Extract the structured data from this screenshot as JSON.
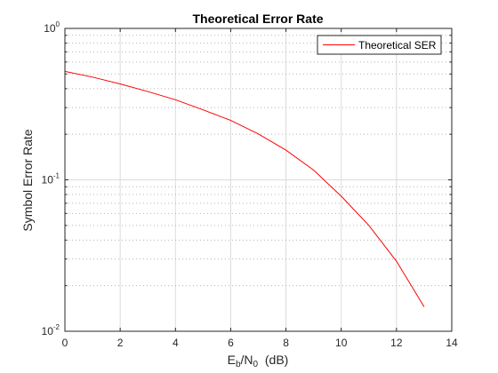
{
  "chart_data": {
    "type": "line",
    "title": "Theoretical Error Rate",
    "xlabel": "E_b/N_0 (dB)",
    "xlabel_main_1": "E",
    "xlabel_sub_1": "b",
    "xlabel_main_2": "/N",
    "xlabel_sub_2": "0",
    "xlabel_unit": "  (dB)",
    "ylabel": "Symbol Error Rate",
    "xlim": [
      0,
      14
    ],
    "ylim": [
      0.01,
      1
    ],
    "yscale": "log",
    "grid": true,
    "minor_grid": true,
    "legend_position": "top-right",
    "x_ticks": [
      0,
      2,
      4,
      6,
      8,
      10,
      12,
      14
    ],
    "x_tick_labels": [
      "0",
      "2",
      "4",
      "6",
      "8",
      "10",
      "12",
      "14"
    ],
    "y_ticks": [
      {
        "value": 1,
        "base": "10",
        "exp": "0"
      },
      {
        "value": 0.1,
        "base": "10",
        "exp": "-1"
      },
      {
        "value": 0.01,
        "base": "10",
        "exp": "-2"
      }
    ],
    "series": [
      {
        "name": "Theoretical SER",
        "color": "#ff0000",
        "x": [
          0,
          1,
          2,
          3,
          4,
          5,
          6,
          7,
          8,
          9,
          10,
          11,
          12,
          13
        ],
        "y": [
          0.52,
          0.477,
          0.43,
          0.383,
          0.338,
          0.29,
          0.247,
          0.201,
          0.157,
          0.116,
          0.078,
          0.05,
          0.029,
          0.0145
        ]
      }
    ]
  }
}
